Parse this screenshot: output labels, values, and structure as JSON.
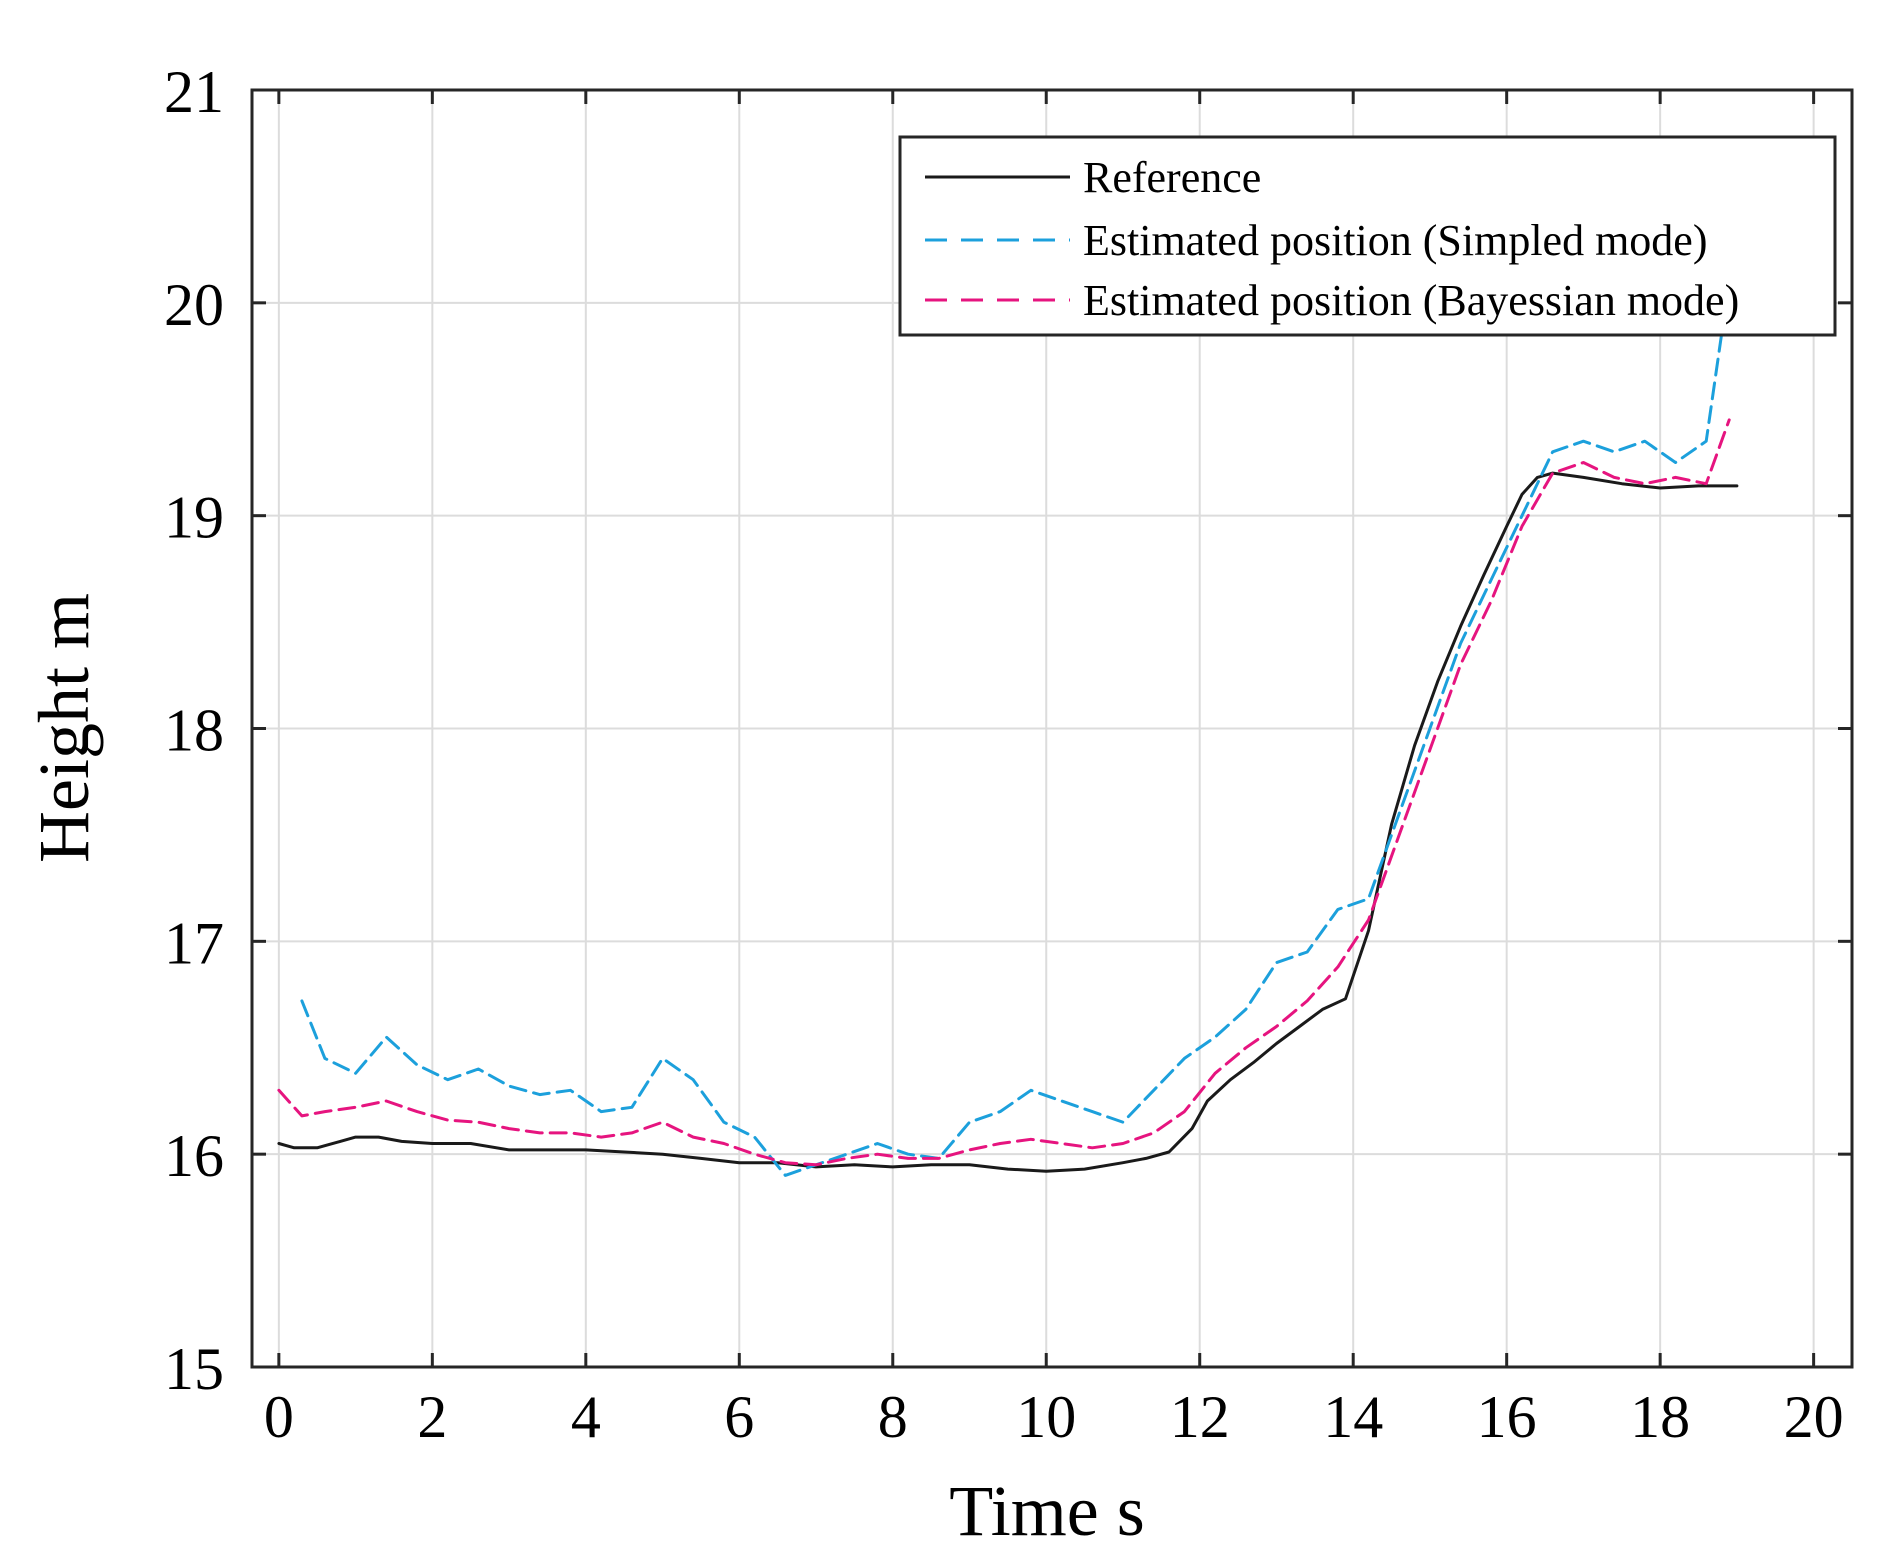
{
  "chart_data": {
    "type": "line",
    "title": "",
    "xlabel": "Time s",
    "ylabel": "Height m",
    "xlim": [
      -0.35,
      20.5
    ],
    "ylim": [
      15,
      21
    ],
    "xticks": [
      "0",
      "2",
      "4",
      "6",
      "8",
      "10",
      "12",
      "14",
      "16",
      "18",
      "20"
    ],
    "yticks": [
      "15",
      "16",
      "17",
      "18",
      "19",
      "20",
      "21"
    ],
    "grid": true,
    "legend_position": "top-right",
    "colors": {
      "reference": "#1a1a1a",
      "simpled": "#1ca0dc",
      "bayessian": "#e6147f"
    },
    "series": [
      {
        "name": "Reference",
        "style": "solid",
        "x": [
          0,
          0.2,
          0.5,
          0.8,
          1.0,
          1.3,
          1.6,
          2.0,
          2.5,
          3.0,
          3.5,
          4.0,
          4.5,
          5.0,
          5.5,
          6.0,
          6.5,
          7.0,
          7.5,
          8.0,
          8.5,
          9.0,
          9.5,
          10.0,
          10.5,
          11.0,
          11.3,
          11.6,
          11.9,
          12.1,
          12.4,
          12.7,
          13.0,
          13.3,
          13.6,
          13.9,
          14.2,
          14.5,
          14.8,
          15.1,
          15.4,
          15.7,
          16.0,
          16.2,
          16.4,
          16.6,
          17.0,
          17.5,
          18.0,
          18.5,
          19.0
        ],
        "values": [
          16.05,
          16.03,
          16.03,
          16.06,
          16.08,
          16.08,
          16.06,
          16.05,
          16.05,
          16.02,
          16.02,
          16.02,
          16.01,
          16.0,
          15.98,
          15.96,
          15.96,
          15.94,
          15.95,
          15.94,
          15.95,
          15.95,
          15.93,
          15.92,
          15.93,
          15.96,
          15.98,
          16.01,
          16.12,
          16.25,
          16.35,
          16.43,
          16.52,
          16.6,
          16.68,
          16.73,
          17.05,
          17.55,
          17.92,
          18.22,
          18.48,
          18.72,
          18.95,
          19.1,
          19.18,
          19.2,
          19.18,
          19.15,
          19.13,
          19.14,
          19.14
        ]
      },
      {
        "name": "Estimated position (Simpled mode)",
        "style": "dashed",
        "x": [
          0.3,
          0.6,
          1.0,
          1.4,
          1.8,
          2.2,
          2.6,
          3.0,
          3.4,
          3.8,
          4.2,
          4.6,
          5.0,
          5.4,
          5.8,
          6.2,
          6.6,
          7.0,
          7.4,
          7.8,
          8.2,
          8.6,
          9.0,
          9.4,
          9.8,
          10.2,
          10.6,
          11.0,
          11.4,
          11.8,
          12.2,
          12.6,
          13.0,
          13.4,
          13.8,
          14.2,
          14.6,
          15.0,
          15.4,
          15.8,
          16.2,
          16.6,
          17.0,
          17.4,
          17.8,
          18.2,
          18.6,
          18.8
        ],
        "values": [
          16.72,
          16.45,
          16.38,
          16.55,
          16.42,
          16.35,
          16.4,
          16.32,
          16.28,
          16.3,
          16.2,
          16.22,
          16.45,
          16.35,
          16.15,
          16.08,
          15.9,
          15.95,
          16.0,
          16.05,
          16.0,
          15.98,
          16.15,
          16.2,
          16.3,
          16.25,
          16.2,
          16.15,
          16.3,
          16.45,
          16.55,
          16.68,
          16.9,
          16.95,
          17.15,
          17.2,
          17.6,
          18.0,
          18.4,
          18.7,
          19.0,
          19.3,
          19.35,
          19.3,
          19.35,
          19.25,
          19.35,
          19.85
        ]
      },
      {
        "name": "Estimated position (Bayessian mode)",
        "style": "dashed",
        "x": [
          0.0,
          0.3,
          0.6,
          1.0,
          1.4,
          1.8,
          2.2,
          2.6,
          3.0,
          3.4,
          3.8,
          4.2,
          4.6,
          5.0,
          5.4,
          5.8,
          6.2,
          6.6,
          7.0,
          7.4,
          7.8,
          8.2,
          8.6,
          9.0,
          9.4,
          9.8,
          10.2,
          10.6,
          11.0,
          11.4,
          11.8,
          12.2,
          12.6,
          13.0,
          13.4,
          13.8,
          14.2,
          14.6,
          15.0,
          15.4,
          15.8,
          16.2,
          16.6,
          17.0,
          17.4,
          17.8,
          18.2,
          18.6,
          18.9
        ],
        "values": [
          16.3,
          16.18,
          16.2,
          16.22,
          16.25,
          16.2,
          16.16,
          16.15,
          16.12,
          16.1,
          16.1,
          16.08,
          16.1,
          16.15,
          16.08,
          16.05,
          16.0,
          15.96,
          15.95,
          15.98,
          16.0,
          15.98,
          15.98,
          16.02,
          16.05,
          16.07,
          16.05,
          16.03,
          16.05,
          16.1,
          16.2,
          16.38,
          16.5,
          16.6,
          16.72,
          16.88,
          17.1,
          17.5,
          17.9,
          18.3,
          18.6,
          18.95,
          19.2,
          19.25,
          19.18,
          19.15,
          19.18,
          19.15,
          19.45
        ]
      }
    ]
  }
}
